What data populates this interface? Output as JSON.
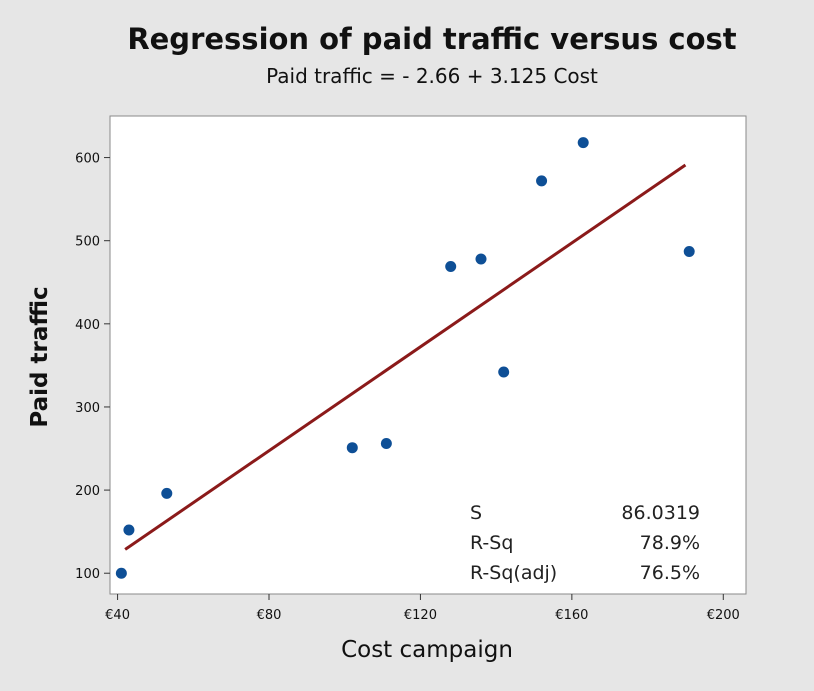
{
  "chart_data": {
    "type": "scatter",
    "title": "Regression of paid traffic versus cost",
    "subtitle": "Paid traffic = - 2.66 + 3.125 Cost",
    "xlabel": "Cost campaign",
    "ylabel": "Paid traffic",
    "xlim": [
      38,
      206
    ],
    "ylim": [
      75,
      650
    ],
    "x_ticks": [
      {
        "value": 40,
        "label": "€40"
      },
      {
        "value": 80,
        "label": "€80"
      },
      {
        "value": 120,
        "label": "€120"
      },
      {
        "value": 160,
        "label": "€160"
      },
      {
        "value": 200,
        "label": "€200"
      }
    ],
    "y_ticks": [
      {
        "value": 100,
        "label": "100"
      },
      {
        "value": 200,
        "label": "200"
      },
      {
        "value": 300,
        "label": "300"
      },
      {
        "value": 400,
        "label": "400"
      },
      {
        "value": 500,
        "label": "500"
      },
      {
        "value": 600,
        "label": "600"
      }
    ],
    "points": [
      {
        "x": 41,
        "y": 100
      },
      {
        "x": 43,
        "y": 152
      },
      {
        "x": 53,
        "y": 196
      },
      {
        "x": 102,
        "y": 251
      },
      {
        "x": 111,
        "y": 256
      },
      {
        "x": 128,
        "y": 469
      },
      {
        "x": 136,
        "y": 478
      },
      {
        "x": 142,
        "y": 342
      },
      {
        "x": 152,
        "y": 572
      },
      {
        "x": 163,
        "y": 618
      },
      {
        "x": 191,
        "y": 487
      }
    ],
    "fit_line": {
      "intercept": -2.66,
      "slope": 3.125,
      "x_range": [
        42,
        190
      ]
    },
    "stats": [
      {
        "label": "S",
        "value": "86.0319"
      },
      {
        "label": "R-Sq",
        "value": "78.9%"
      },
      {
        "label": "R-Sq(adj)",
        "value": "76.5%"
      }
    ],
    "grid": false,
    "colors": {
      "points": "#0e4f96",
      "fit_line": "#8b1a1a",
      "plot_background": "#ffffff",
      "outer_background": "#e6e6e6"
    }
  }
}
